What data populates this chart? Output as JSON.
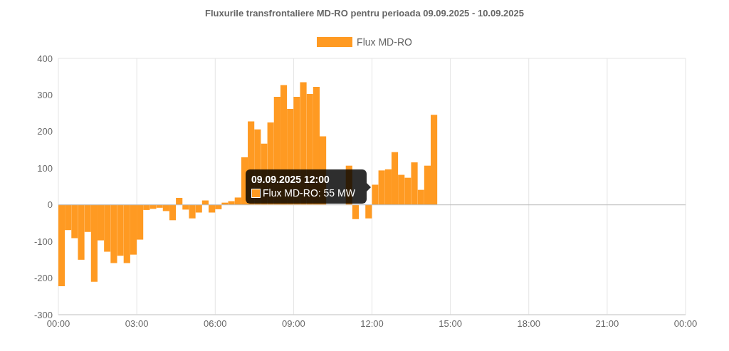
{
  "chart_data": {
    "type": "bar",
    "title": "Fluxurile transfrontaliere MD-RO pentru perioada 09.09.2025 - 10.09.2025",
    "x": [
      0,
      0.25,
      0.5,
      0.75,
      1,
      1.25,
      1.5,
      1.75,
      2,
      2.25,
      2.5,
      2.75,
      3,
      3.25,
      3.5,
      3.75,
      4,
      4.25,
      4.5,
      4.75,
      5,
      5.25,
      5.5,
      5.75,
      6,
      6.25,
      6.5,
      6.75,
      7,
      7.25,
      7.5,
      7.75,
      8,
      8.25,
      8.5,
      8.75,
      9,
      9.25,
      9.5,
      9.75,
      10,
      10.25,
      10.5,
      10.75,
      11,
      11.25,
      11.5,
      11.75,
      12,
      12.25,
      12.5,
      12.75,
      13,
      13.25,
      13.5,
      13.75,
      14,
      14.25
    ],
    "series": [
      {
        "name": "Flux MD-RO",
        "color": "#ff9a22",
        "values": [
          -222,
          -69,
          -91,
          -150,
          -74,
          -210,
          -97,
          -128,
          -159,
          -139,
          -159,
          -136,
          -95,
          -14,
          -11,
          -8,
          -17,
          -42,
          19,
          -13,
          -37,
          -21,
          12,
          -21,
          -12,
          6,
          10,
          20,
          130,
          228,
          206,
          167,
          225,
          295,
          327,
          262,
          295,
          335,
          303,
          322,
          187,
          null,
          null,
          null,
          107,
          -39,
          null,
          -37,
          55,
          94,
          97,
          144,
          82,
          74,
          116,
          41,
          107,
          246
        ]
      }
    ],
    "xlim": [
      0,
      24
    ],
    "xticks": [
      {
        "value": 0,
        "label": "00:00"
      },
      {
        "value": 3,
        "label": "03:00"
      },
      {
        "value": 6,
        "label": "06:00"
      },
      {
        "value": 9,
        "label": "09:00"
      },
      {
        "value": 12,
        "label": "12:00"
      },
      {
        "value": 15,
        "label": "15:00"
      },
      {
        "value": 18,
        "label": "18:00"
      },
      {
        "value": 21,
        "label": "21:00"
      },
      {
        "value": 24,
        "label": "00:00"
      }
    ],
    "ylim": [
      -300,
      400
    ],
    "yticks": [
      -300,
      -200,
      -100,
      0,
      100,
      200,
      300,
      400
    ],
    "grid": true,
    "legend": "top",
    "annotations": [
      "09.09.2025 12:00",
      "Flux MD-RO: 55 MW"
    ]
  }
}
